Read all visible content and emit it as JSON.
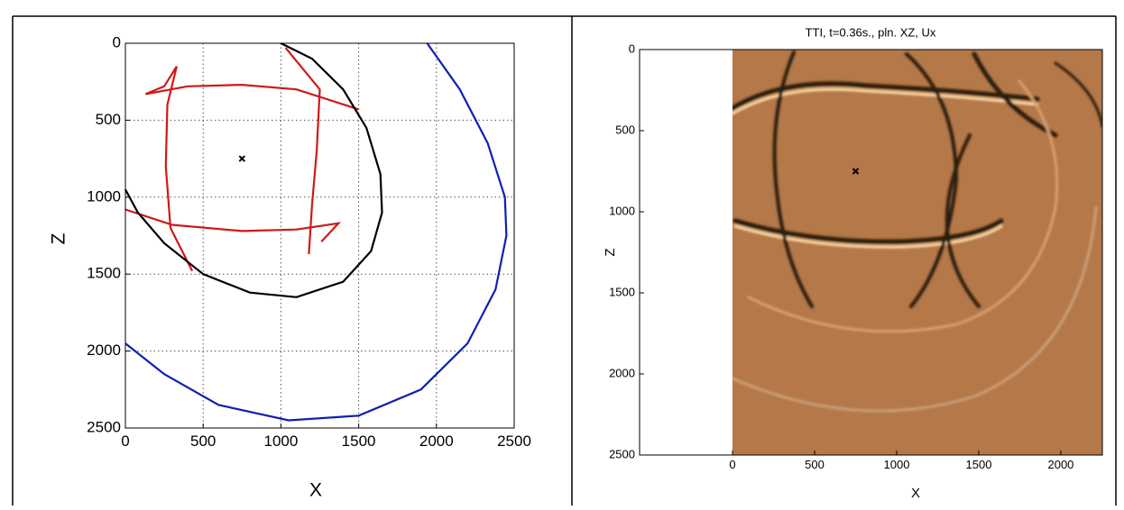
{
  "chart_data": [
    {
      "type": "line",
      "xlabel": "X",
      "ylabel": "Z",
      "xlim": [
        0,
        2500
      ],
      "ylim": [
        0,
        2500
      ],
      "y_inverted": true,
      "xticks": [
        0,
        500,
        1000,
        1500,
        2000,
        2500
      ],
      "yticks": [
        0,
        500,
        1000,
        1500,
        2000,
        2500
      ],
      "grid": true,
      "series": [
        {
          "color": "#d01818",
          "x": [
            330,
            250,
            130,
            400,
            750,
            1100,
            1500,
            null,
            330,
            270,
            260,
            290,
            430,
            null,
            1030,
            1250,
            1230,
            1200,
            1180,
            null,
            0,
            300,
            750,
            1100,
            1370,
            1260
          ],
          "values": [
            150,
            280,
            330,
            280,
            270,
            300,
            430,
            null,
            150,
            400,
            800,
            1200,
            1480,
            null,
            30,
            300,
            700,
            1050,
            1370,
            null,
            1080,
            1180,
            1220,
            1210,
            1170,
            1290
          ]
        },
        {
          "color": "#000000",
          "x": [
            1000,
            1200,
            1400,
            1550,
            1640,
            1650,
            1580,
            1400,
            1100,
            800,
            500,
            250,
            80,
            0
          ],
          "values": [
            0,
            100,
            300,
            550,
            850,
            1100,
            1350,
            1550,
            1650,
            1620,
            1500,
            1300,
            1100,
            950
          ]
        },
        {
          "color": "#1020b0",
          "x": [
            1940,
            2150,
            2330,
            2440,
            2450,
            2380,
            2200,
            1900,
            1500,
            1050,
            600,
            250,
            0
          ],
          "values": [
            0,
            300,
            650,
            1000,
            1250,
            1600,
            1950,
            2250,
            2420,
            2450,
            2350,
            2150,
            1950
          ]
        }
      ],
      "marker": {
        "x": 750,
        "y": 750
      }
    },
    {
      "type": "image",
      "title": "TTI, t=0.36s., pln. XZ, Ux",
      "xlabel": "X",
      "ylabel": "Z",
      "xlim": [
        -566,
        2253
      ],
      "ylim": [
        0,
        2500
      ],
      "y_inverted": true,
      "xticks": [
        0,
        500,
        1000,
        1500,
        2000
      ],
      "yticks": [
        0,
        500,
        1000,
        1500,
        2000,
        2500
      ],
      "grid": false,
      "series": [],
      "marker": {
        "x": 750,
        "y": 750
      }
    }
  ]
}
